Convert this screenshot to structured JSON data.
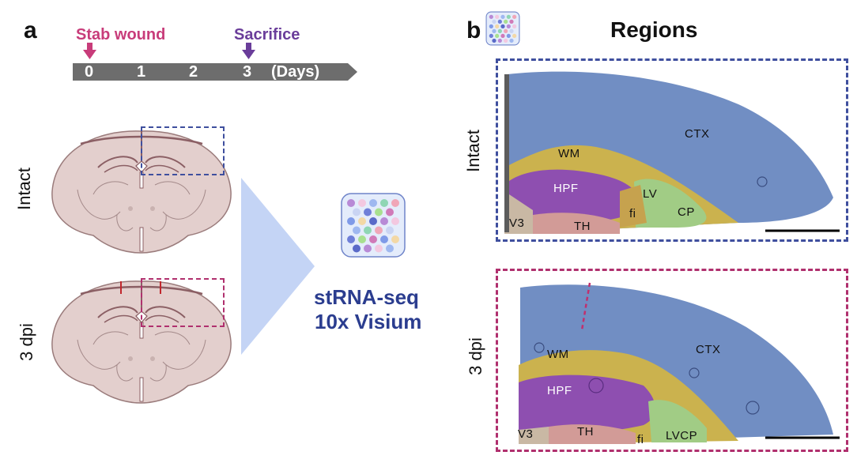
{
  "panel_a": {
    "letter": "a",
    "timeline": {
      "event_injury": "Stab wound",
      "event_sacrifice": "Sacrifice",
      "ticks": [
        "0",
        "1",
        "2",
        "3"
      ],
      "unit": "(Days)"
    },
    "conditions": [
      "Intact",
      "3 dpi"
    ],
    "method_line1": "stRNA-seq",
    "method_line2": "10x Visium"
  },
  "panel_b": {
    "letter": "b",
    "title": "Regions",
    "intact": {
      "label": "Intact",
      "regions": [
        "CTX",
        "WM",
        "HPF",
        "LV",
        "CP",
        "fi",
        "V3",
        "TH"
      ]
    },
    "dpi3": {
      "label": "3 dpi",
      "regions": [
        "CTX",
        "WM",
        "HPF",
        "V3",
        "TH",
        "fi",
        "LVCP"
      ]
    }
  },
  "colors": {
    "stab": "#c83c7a",
    "sacrifice": "#6a3d9a",
    "timeline": "#6d6d6d",
    "intact_box": "#3f4f9e",
    "dpi3_box": "#b0306e",
    "method_text": "#2b3d8f",
    "ctx": "#5f7fb8",
    "wm": "#c9b24a",
    "hpf": "#8e4fb0",
    "th": "#c98c8c",
    "cp": "#8fbf78"
  }
}
